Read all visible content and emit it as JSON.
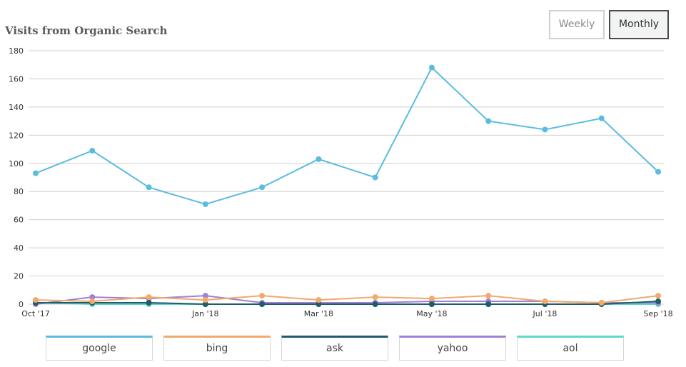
{
  "header": {
    "title": "Visits from Organic Search",
    "toggle_weekly": "Weekly",
    "toggle_monthly": "Monthly",
    "active_toggle": "Monthly"
  },
  "chart_data": {
    "type": "line",
    "title": "Visits from Organic Search",
    "x": [
      "2017-10",
      "2017-11",
      "2017-12",
      "2018-01",
      "2018-02",
      "2018-03",
      "2018-04",
      "2018-05",
      "2018-06",
      "2018-07",
      "2018-08",
      "2018-09"
    ],
    "x_tick_labels": [
      "Oct '17",
      "Jan '18",
      "Mar '18",
      "May '18",
      "Jul '18",
      "Sep '18"
    ],
    "x_tick_positions": [
      "2017-10",
      "2018-01",
      "2018-03",
      "2018-05",
      "2018-07",
      "2018-09"
    ],
    "ylim": [
      0,
      180
    ],
    "yticks": [
      0,
      20,
      40,
      60,
      80,
      100,
      120,
      140,
      160,
      180
    ],
    "grid": true,
    "legend_position": "bottom",
    "series": [
      {
        "name": "google",
        "color": "#5bbcdf",
        "values": [
          93,
          109,
          83,
          71,
          83,
          103,
          90,
          168,
          130,
          124,
          132,
          94
        ]
      },
      {
        "name": "bing",
        "color": "#f2a96a",
        "values": [
          3,
          2,
          5,
          3,
          6,
          3,
          5,
          4,
          6,
          2,
          1,
          6
        ]
      },
      {
        "name": "ask",
        "color": "#1e5c6b",
        "values": [
          1,
          1,
          1,
          0,
          0,
          0,
          0,
          0,
          0,
          0,
          0,
          2
        ]
      },
      {
        "name": "yahoo",
        "color": "#a07fd4",
        "values": [
          0,
          5,
          4,
          6,
          1,
          1,
          1,
          2,
          2,
          2,
          1,
          1
        ]
      },
      {
        "name": "aol",
        "color": "#5fd8c8",
        "values": [
          1,
          0,
          0,
          0,
          0,
          0,
          0,
          0,
          0,
          0,
          0,
          0
        ]
      }
    ]
  }
}
